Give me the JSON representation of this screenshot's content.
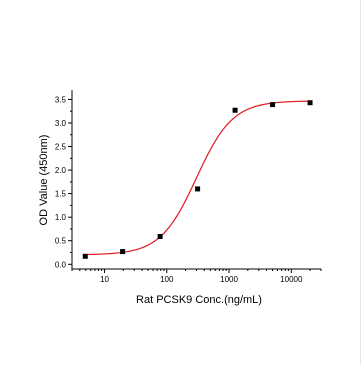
{
  "chart_data": {
    "type": "scatter",
    "xlabel": "Rat PCSK9 Conc.(ng/mL)",
    "ylabel": "OD Value (450nm)",
    "x_scale": "log",
    "xlim": [
      3,
      30000
    ],
    "ylim": [
      -0.1,
      3.7
    ],
    "x_ticks": [
      10,
      100,
      1000,
      10000
    ],
    "x_tick_labels": [
      "10",
      "100",
      "1000",
      "10000"
    ],
    "y_ticks": [
      0.0,
      0.5,
      1.0,
      1.5,
      2.0,
      2.5,
      3.0,
      3.5
    ],
    "y_tick_labels": [
      "0.0",
      "0.5",
      "1.0",
      "1.5",
      "2.0",
      "2.5",
      "3.0",
      "3.5"
    ],
    "grid": false,
    "legend": "none",
    "series": [
      {
        "kind": "points",
        "x": [
          4.9,
          19.5,
          78.1,
          312.5,
          1250,
          5000,
          20000
        ],
        "y": [
          0.17,
          0.27,
          0.59,
          1.6,
          3.27,
          3.39,
          3.43
        ],
        "color": "#000000"
      },
      {
        "kind": "fit-curve",
        "model": "4PL",
        "bottom": 0.2,
        "top": 3.47,
        "ec50": 300,
        "hill": 1.5,
        "color": "#e0191f"
      }
    ]
  }
}
